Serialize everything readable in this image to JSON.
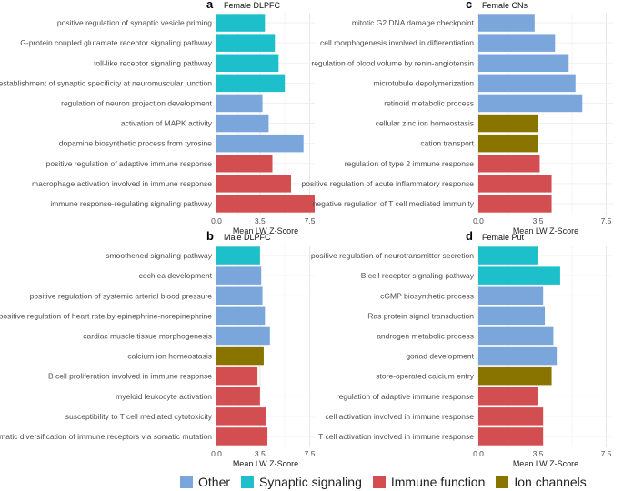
{
  "colors": {
    "Other": "#7ba6dc",
    "Synaptic signaling": "#1dbfca",
    "Immune function": "#d24e50",
    "Ion channels": "#8a7400"
  },
  "legend": {
    "items": [
      {
        "category": "Other",
        "label": "Other"
      },
      {
        "category": "Synaptic signaling",
        "label": "Synaptic signaling"
      },
      {
        "category": "Immune function",
        "label": "Immune function"
      },
      {
        "category": "Ion channels",
        "label": "Ion channels"
      }
    ]
  },
  "chart_data": [
    {
      "type": "bar",
      "orientation": "horizontal",
      "panel_letter": "a",
      "title": "Female DLPFC",
      "xlabel": "Mean LW Z-Score",
      "xlim": [
        0,
        7.9
      ],
      "xticks": [
        "0.0",
        "3.5",
        "7.5"
      ],
      "xtick_values": [
        0,
        3.5,
        7.5
      ],
      "categories": [
        "positive regulation of synaptic vesicle priming",
        "G-protein coupled glutamate receptor signaling pathway",
        "toll-like receptor signaling pathway",
        "establishment of synaptic specificity at neuromuscular junction",
        "regulation of neuron projection development",
        "activation of MAPK activity",
        "dopamine biosynthetic process from tyrosine",
        "positive regulation of adaptive immune response",
        "macrophage activation involved in immune response",
        "immune response-regulating signaling pathway"
      ],
      "values": [
        3.9,
        4.7,
        5.0,
        5.5,
        3.7,
        4.2,
        7.0,
        4.5,
        6.0,
        7.9
      ],
      "groups": [
        "Synaptic signaling",
        "Synaptic signaling",
        "Synaptic signaling",
        "Synaptic signaling",
        "Other",
        "Other",
        "Other",
        "Immune function",
        "Immune function",
        "Immune function"
      ]
    },
    {
      "type": "bar",
      "orientation": "horizontal",
      "panel_letter": "b",
      "title": "Male DLPFC",
      "xlabel": "Mean LW Z-Score",
      "xlim": [
        0,
        7.9
      ],
      "xticks": [
        "0.0",
        "3.5",
        "7.5"
      ],
      "xtick_values": [
        0,
        3.5,
        7.5
      ],
      "categories": [
        "smoothened signaling pathway",
        "cochlea development",
        "positive regulation of systemic arterial blood pressure",
        "positive regulation of heart rate by epinephrine-norepinephrine",
        "cardiac muscle tissue morphogenesis",
        "calcium ion homeostasis",
        "B cell proliferation involved in immune response",
        "myeloid leukocyte activation",
        "susceptibility to T cell mediated cytotoxicity",
        "somatic diversification of immune receptors via somatic mutation"
      ],
      "values": [
        3.5,
        3.6,
        3.7,
        3.9,
        4.3,
        3.8,
        3.3,
        3.5,
        4.0,
        4.1
      ],
      "groups": [
        "Synaptic signaling",
        "Other",
        "Other",
        "Other",
        "Other",
        "Ion channels",
        "Immune function",
        "Immune function",
        "Immune function",
        "Immune function"
      ]
    },
    {
      "type": "bar",
      "orientation": "horizontal",
      "panel_letter": "c",
      "title": "Female CNs",
      "xlabel": "Mean LW Z-Score",
      "xlim": [
        0,
        7.9
      ],
      "xticks": [
        "0.0",
        "3.5",
        "7.5"
      ],
      "xtick_values": [
        0,
        3.5,
        7.5
      ],
      "categories": [
        "mitotic G2 DNA damage checkpoint",
        "cell morphogenesis involved in differentiation",
        "regulation of blood volume by renin-angiotensin",
        "microtubule depolymerization",
        "retinoid metabolic process",
        "cellular zinc ion homeostasis",
        "cation transport",
        "regulation of type 2 immune response",
        "positive regulation of acute inflammatory response",
        "negative regulation of T cell mediated immunity"
      ],
      "values": [
        3.3,
        4.5,
        5.3,
        5.7,
        6.1,
        3.5,
        3.5,
        3.6,
        4.3,
        4.3
      ],
      "groups": [
        "Other",
        "Other",
        "Other",
        "Other",
        "Other",
        "Ion channels",
        "Ion channels",
        "Immune function",
        "Immune function",
        "Immune function"
      ]
    },
    {
      "type": "bar",
      "orientation": "horizontal",
      "panel_letter": "d",
      "title": "Female Put",
      "xlabel": "Mean LW Z-Score",
      "xlim": [
        0,
        7.9
      ],
      "xticks": [
        "0.0",
        "3.5",
        "7.5"
      ],
      "xtick_values": [
        0,
        3.5,
        7.5
      ],
      "categories": [
        "positive regulation of neurotransmitter secretion",
        "B cell receptor signaling pathway",
        "cGMP biosynthetic process",
        "Ras protein signal transduction",
        "androgen metabolic process",
        "gonad development",
        "store-operated calcium entry",
        "regulation of adaptive immune response",
        "cell activation involved in immune response",
        "T cell activation involved in immune response"
      ],
      "values": [
        3.5,
        4.8,
        3.8,
        3.9,
        4.4,
        4.6,
        4.3,
        3.5,
        3.8,
        3.8
      ],
      "groups": [
        "Synaptic signaling",
        "Synaptic signaling",
        "Other",
        "Other",
        "Other",
        "Other",
        "Ion channels",
        "Immune function",
        "Immune function",
        "Immune function"
      ]
    }
  ]
}
